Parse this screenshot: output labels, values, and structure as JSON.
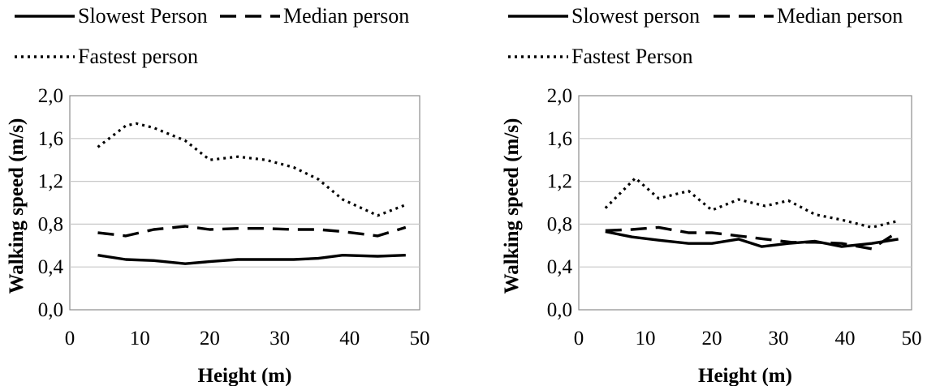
{
  "chart_data": [
    {
      "type": "line",
      "xlabel": "Height (m)",
      "ylabel": "Walking speed (m/s)",
      "xlim": [
        0,
        50
      ],
      "ylim": [
        0,
        2.0
      ],
      "xticks": [
        "0",
        "10",
        "20",
        "30",
        "40",
        "50"
      ],
      "yticks": [
        "0,0",
        "0,4",
        "0,8",
        "1,2",
        "1,6",
        "2,0"
      ],
      "grid": "horizontal",
      "legend_position": "top",
      "series": [
        {
          "name": "Slowest Person",
          "style": "solid",
          "x": [
            4,
            8,
            12,
            16.5,
            20,
            24,
            28,
            32,
            35.5,
            39,
            44,
            48
          ],
          "y": [
            0.51,
            0.47,
            0.46,
            0.43,
            0.45,
            0.47,
            0.47,
            0.47,
            0.48,
            0.51,
            0.5,
            0.51
          ]
        },
        {
          "name": "Median person",
          "style": "dashed",
          "x": [
            4,
            8,
            12,
            16.5,
            20,
            24,
            28,
            32,
            35.5,
            39,
            44,
            48
          ],
          "y": [
            0.72,
            0.69,
            0.75,
            0.78,
            0.75,
            0.76,
            0.76,
            0.75,
            0.75,
            0.73,
            0.69,
            0.77
          ]
        },
        {
          "name": "Fastest person",
          "style": "dotted",
          "x": [
            4,
            8,
            9.5,
            12,
            16.5,
            20,
            24,
            28,
            32,
            35.5,
            39,
            44,
            48
          ],
          "y": [
            1.52,
            1.72,
            1.74,
            1.7,
            1.58,
            1.4,
            1.43,
            1.4,
            1.33,
            1.22,
            1.03,
            0.88,
            0.98
          ]
        }
      ]
    },
    {
      "type": "line",
      "xlabel": "Height (m)",
      "ylabel": "Walking speed (m/s)",
      "xlim": [
        0,
        50
      ],
      "ylim": [
        0,
        2.0
      ],
      "xticks": [
        "0",
        "10",
        "20",
        "30",
        "40",
        "50"
      ],
      "yticks": [
        "0,0",
        "0,4",
        "0,8",
        "1,2",
        "1,6",
        "2,0"
      ],
      "grid": "horizontal",
      "legend_position": "top",
      "series": [
        {
          "name": "Slowest person",
          "style": "solid",
          "x": [
            4,
            8,
            12,
            16.5,
            20,
            24,
            27.5,
            31.5,
            35.5,
            39.5,
            44,
            48
          ],
          "y": [
            0.73,
            0.68,
            0.65,
            0.62,
            0.62,
            0.66,
            0.59,
            0.62,
            0.64,
            0.59,
            0.62,
            0.66
          ]
        },
        {
          "name": "Median person",
          "style": "dashed",
          "x": [
            4,
            8,
            12,
            16.5,
            20,
            24,
            28,
            32,
            35.5,
            39.5,
            44,
            47
          ],
          "y": [
            0.74,
            0.75,
            0.77,
            0.72,
            0.72,
            0.69,
            0.66,
            0.63,
            0.63,
            0.62,
            0.57,
            0.69
          ]
        },
        {
          "name": "Fastest Person",
          "style": "dotted",
          "x": [
            4,
            8.5,
            12,
            16.5,
            20,
            24,
            28,
            31.5,
            35.5,
            39.5,
            44,
            48
          ],
          "y": [
            0.95,
            1.23,
            1.04,
            1.11,
            0.93,
            1.03,
            0.97,
            1.02,
            0.89,
            0.84,
            0.77,
            0.83
          ]
        }
      ]
    }
  ]
}
